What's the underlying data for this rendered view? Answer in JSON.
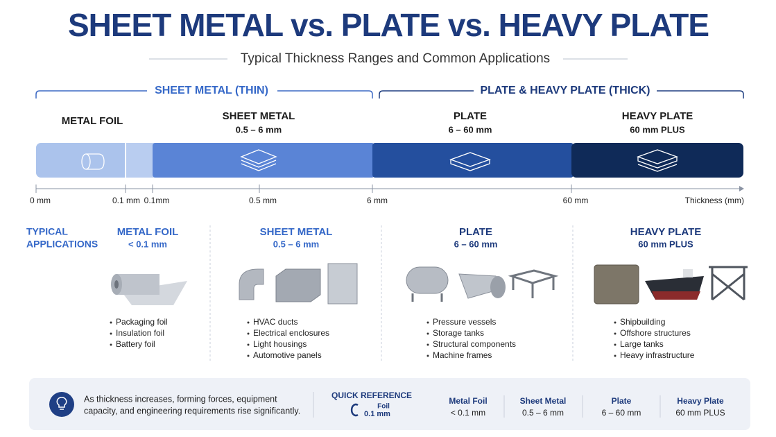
{
  "header": {
    "title": "SHEET METAL vs. PLATE vs. HEAVY PLATE",
    "subtitle": "Typical Thickness Ranges and Common Applications"
  },
  "groups": [
    {
      "label": "SHEET METAL (THIN)"
    },
    {
      "label": "PLATE & HEAVY PLATE (THICK)"
    }
  ],
  "segments": [
    {
      "name": "METAL FOIL"
    },
    {
      "name": "SHEET METAL",
      "range": "0.5 – 6 mm"
    },
    {
      "name": "PLATE",
      "range": "6 – 60 mm"
    },
    {
      "name": "HEAVY PLATE",
      "range": "60 mm PLUS"
    }
  ],
  "axis": {
    "labels": [
      "0 mm",
      "0.1 mm",
      "0.1mm",
      "0.5 mm",
      "6 mm",
      "60 mm"
    ],
    "title": "Thickness (mm)"
  },
  "applications": {
    "heading": [
      "TYPICAL",
      "APPLICATIONS"
    ],
    "columns": [
      {
        "name": "METAL FOIL",
        "range": "< 0.1 mm",
        "items": [
          "Packaging foil",
          "Insulation foil",
          "Battery foil"
        ]
      },
      {
        "name": "SHEET METAL",
        "range": "0.5 – 6 mm",
        "items": [
          "HVAC ducts",
          "Electrical enclosures",
          "Light housings",
          "Automotive panels"
        ]
      },
      {
        "name": "PLATE",
        "range": "6 – 60 mm",
        "items": [
          "Pressure vessels",
          "Storage tanks",
          "Structural components",
          "Machine frames"
        ]
      },
      {
        "name": "HEAVY PLATE",
        "range": "60 mm PLUS",
        "items": [
          "Shipbuilding",
          "Offshore structures",
          "Large tanks",
          "Heavy infrastructure"
        ]
      }
    ]
  },
  "footer": {
    "note": [
      "As thickness increases, forming forces, equipment",
      "capacity, and engineering requirements rise significantly."
    ],
    "quick_reference": {
      "title": "QUICK REFERENCE",
      "icon_text": [
        "Foil",
        "0.1 mm"
      ],
      "entries": [
        {
          "name": "Metal Foil",
          "range": "< 0.1 mm"
        },
        {
          "name": "Sheet Metal",
          "range": "0.5 – 6 mm"
        },
        {
          "name": "Plate",
          "range": "6 – 60 mm"
        },
        {
          "name": "Heavy Plate",
          "range": "60 mm PLUS"
        }
      ]
    }
  }
}
